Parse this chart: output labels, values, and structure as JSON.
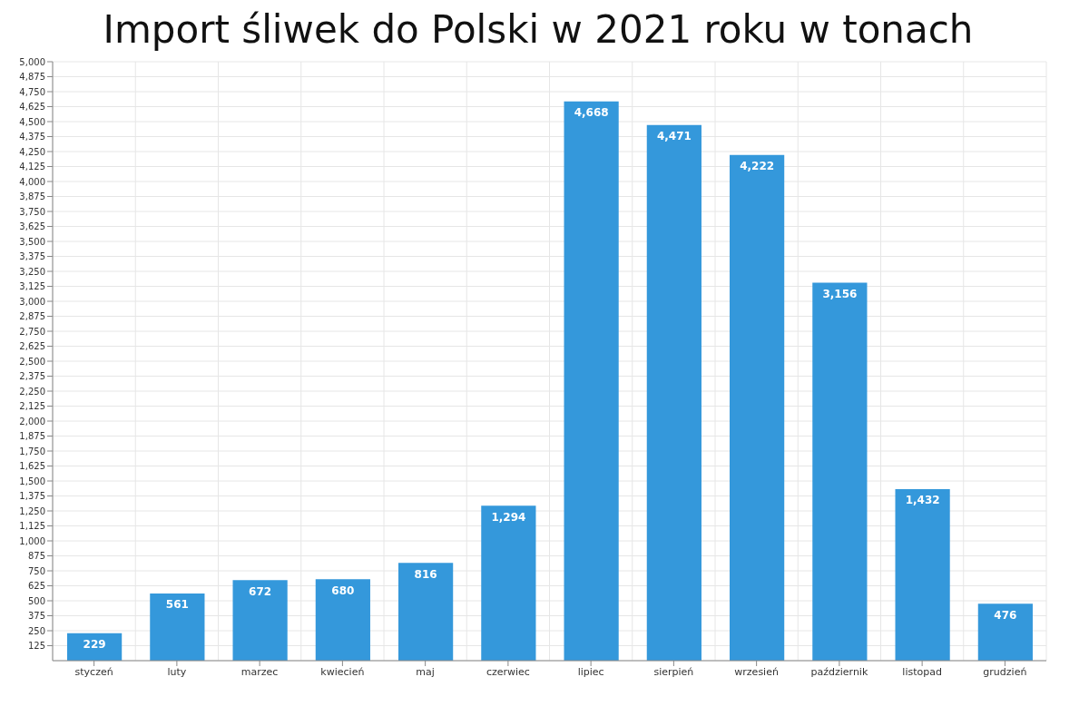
{
  "chart_data": {
    "type": "bar",
    "title": "Import śliwek do Polski w 2021 roku w tonach",
    "categories": [
      "styczeń",
      "luty",
      "marzec",
      "kwiecień",
      "maj",
      "czerwiec",
      "lipiec",
      "sierpień",
      "wrzesień",
      "październik",
      "listopad",
      "grudzień"
    ],
    "values": [
      229,
      561,
      672,
      680,
      816,
      1294,
      4668,
      4471,
      4222,
      3156,
      1432,
      476
    ],
    "value_labels": [
      "229",
      "561",
      "672",
      "680",
      "816",
      "1,294",
      "4,668",
      "4,471",
      "4,222",
      "3,156",
      "1,432",
      "476"
    ],
    "color": "#3498db",
    "ylim": [
      0,
      5000
    ],
    "yticks": [
      125,
      250,
      375,
      500,
      625,
      750,
      875,
      {
        "value": 1000,
        "label": "1,000"
      },
      {
        "value": 1125,
        "label": "1,125"
      },
      {
        "value": 1250,
        "label": "1,250"
      },
      {
        "value": 1375,
        "label": "1,375"
      },
      {
        "value": 1500,
        "label": "1,500"
      },
      {
        "value": 1625,
        "label": "1,625"
      },
      {
        "value": 1750,
        "label": "1,750"
      },
      {
        "value": 1875,
        "label": "1,875"
      },
      {
        "value": 2000,
        "label": "2,000"
      },
      {
        "value": 2125,
        "label": "2,125"
      },
      {
        "value": 2250,
        "label": "2,250"
      },
      {
        "value": 2375,
        "label": "2,375"
      },
      {
        "value": 2500,
        "label": "2,500"
      },
      {
        "value": 2625,
        "label": "2,625"
      },
      {
        "value": 2750,
        "label": "2,750"
      },
      {
        "value": 2875,
        "label": "2,875"
      },
      {
        "value": 3000,
        "label": "3,000"
      },
      {
        "value": 3125,
        "label": "3,125"
      },
      {
        "value": 3250,
        "label": "3,250"
      },
      {
        "value": 3375,
        "label": "3,375"
      },
      {
        "value": 3500,
        "label": "3,500"
      },
      {
        "value": 3625,
        "label": "3,625"
      },
      {
        "value": 3750,
        "label": "3,750"
      },
      {
        "value": 3875,
        "label": "3,875"
      },
      {
        "value": 4000,
        "label": "4,000"
      },
      {
        "value": 4125,
        "label": "4,125"
      },
      {
        "value": 4250,
        "label": "4,250"
      },
      {
        "value": 4375,
        "label": "4,375"
      },
      {
        "value": 4500,
        "label": "4,500"
      },
      {
        "value": 4625,
        "label": "4,625"
      },
      {
        "value": 4750,
        "label": "4,750"
      },
      {
        "value": 4875,
        "label": "4,875"
      },
      {
        "value": 5000,
        "label": "5,000"
      }
    ],
    "grid": true
  }
}
